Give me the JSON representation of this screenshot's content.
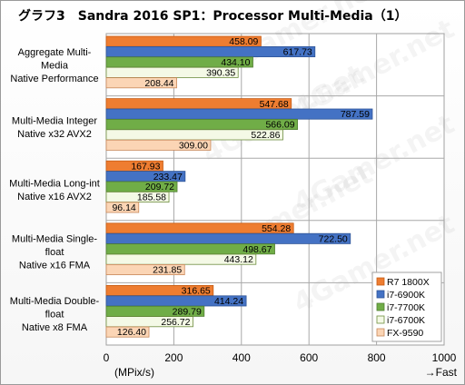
{
  "chart_data": {
    "type": "bar",
    "orientation": "horizontal",
    "title": "グラフ3　Sandra 2016 SP1：Processor Multi-Media（1）",
    "xlabel": "(MPix/s)",
    "direction_note": "→Fast",
    "xlim": [
      0,
      1000
    ],
    "xticks": [
      0,
      200,
      400,
      600,
      800,
      1000
    ],
    "grid": true,
    "legend_position": "bottom-right",
    "watermark": "4Gamer.net",
    "categories": [
      [
        "Aggregate Multi-",
        "Media",
        "Native Performance"
      ],
      [
        "Multi-Media Integer",
        "Native x32 AVX2"
      ],
      [
        "Multi-Media Long-int",
        "Native x16 AVX2"
      ],
      [
        "Multi-Media Single-",
        "float",
        "Native x16 FMA"
      ],
      [
        "Multi-Media Double-",
        "float",
        "Native x8 FMA"
      ]
    ],
    "series": [
      {
        "name": "R7 1800X",
        "color": "#ee7d31",
        "values": [
          458.09,
          547.68,
          167.93,
          554.28,
          316.65
        ]
      },
      {
        "name": "i7-6900K",
        "color": "#4472c4",
        "values": [
          617.73,
          787.59,
          233.47,
          722.5,
          414.24
        ]
      },
      {
        "name": "i7-7700K",
        "color": "#70ad47",
        "values": [
          434.1,
          566.09,
          209.72,
          498.67,
          289.79
        ]
      },
      {
        "name": "i7-6700K",
        "color": "#f4f9e6",
        "values": [
          390.35,
          522.86,
          185.58,
          443.12,
          256.72
        ]
      },
      {
        "name": "FX-9590",
        "color": "#fbd5b5",
        "values": [
          208.44,
          309.0,
          96.14,
          231.85,
          126.4
        ]
      }
    ],
    "series_edge_colors": [
      "#c55a11",
      "#2f5597",
      "#507e32",
      "#6d8d3e",
      "#c9885a"
    ]
  }
}
